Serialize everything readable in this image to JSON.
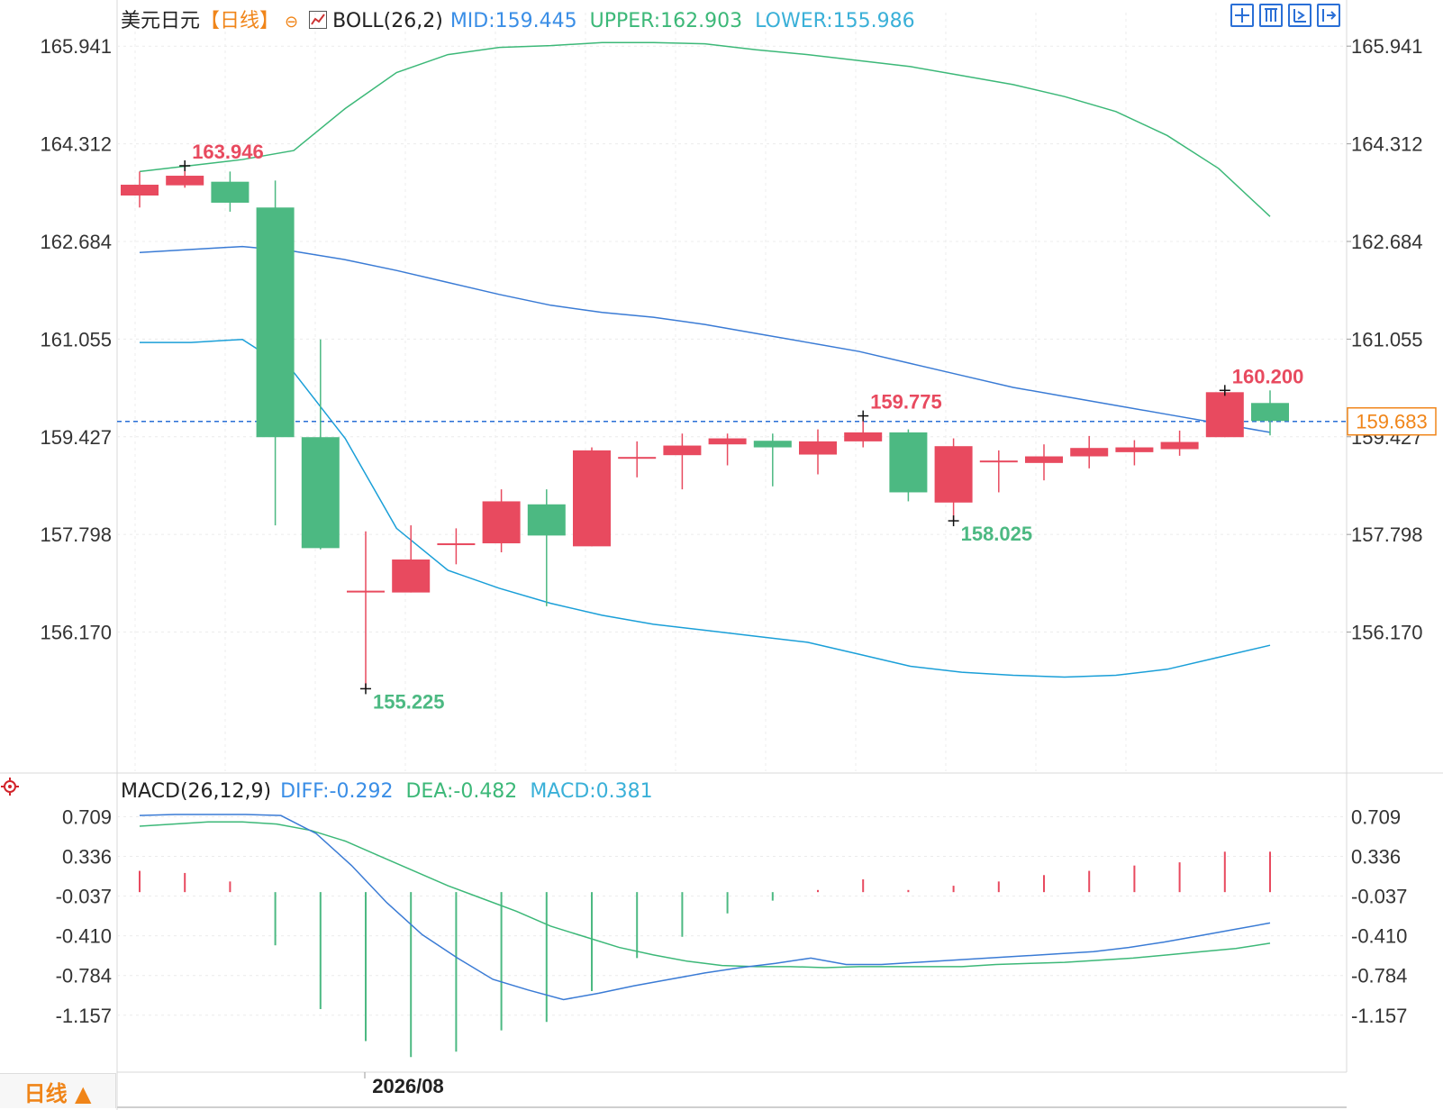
{
  "header": {
    "symbol": "美元日元",
    "period": "【日线】",
    "indicator": "BOLL(26,2)",
    "mid": "MID:159.445",
    "upper": "UPPER:162.903",
    "lower": "LOWER:155.986"
  },
  "macd_header": {
    "indicator": "MACD(26,12,9)",
    "diff": "DIFF:-0.292",
    "dea": "DEA:-0.482",
    "macd": "MACD:0.381"
  },
  "period_tab": "日线 ▲",
  "x_axis_label": "2026/08",
  "colors": {
    "up": "#e84a5f",
    "down": "#4cb982",
    "mid_line": "#3a7bd5",
    "bands": "#1a9fd8",
    "upper_band": "#3cb878",
    "diff_line": "#3a7bd5",
    "dea_line": "#3cb878",
    "current_price": "#f08519",
    "header_mid": "#3a8ee6",
    "header_upper": "#3cb878",
    "header_lower": "#3ab0d8"
  },
  "icons": [
    "crosshair-icon",
    "bar-icon",
    "zoom-icon",
    "expand-icon",
    "settings-icon"
  ],
  "chart_data": [
    {
      "type": "candlestick",
      "ylim": [
        154.3,
        166.5
      ],
      "y_ticks": [
        "165.941",
        "164.312",
        "162.684",
        "161.055",
        "159.427",
        "157.798",
        "156.170"
      ],
      "current_price": "159.683",
      "candles": [
        {
          "open": 163.45,
          "close": 163.63,
          "high": 163.85,
          "low": 163.25
        },
        {
          "open": 163.62,
          "close": 163.78,
          "high": 163.946,
          "low": 163.58
        },
        {
          "open": 163.68,
          "close": 163.33,
          "high": 163.85,
          "low": 163.18
        },
        {
          "open": 163.25,
          "close": 159.42,
          "high": 163.7,
          "low": 157.95
        },
        {
          "open": 159.42,
          "close": 157.57,
          "high": 161.05,
          "low": 157.55
        },
        {
          "open": 156.83,
          "close": 156.86,
          "high": 157.85,
          "low": 155.225
        },
        {
          "open": 156.83,
          "close": 157.38,
          "high": 157.95,
          "low": 156.83
        },
        {
          "open": 157.63,
          "close": 157.65,
          "high": 157.9,
          "low": 157.3
        },
        {
          "open": 157.65,
          "close": 158.35,
          "high": 158.55,
          "low": 157.5
        },
        {
          "open": 158.3,
          "close": 157.78,
          "high": 158.55,
          "low": 156.6
        },
        {
          "open": 157.6,
          "close": 159.2,
          "high": 159.25,
          "low": 157.6
        },
        {
          "open": 159.06,
          "close": 159.09,
          "high": 159.35,
          "low": 158.75
        },
        {
          "open": 159.12,
          "close": 159.28,
          "high": 159.48,
          "low": 158.55
        },
        {
          "open": 159.3,
          "close": 159.4,
          "high": 159.48,
          "low": 158.95
        },
        {
          "open": 159.36,
          "close": 159.25,
          "high": 159.48,
          "low": 158.6
        },
        {
          "open": 159.13,
          "close": 159.35,
          "high": 159.55,
          "low": 158.8
        },
        {
          "open": 159.35,
          "close": 159.5,
          "high": 159.775,
          "low": 159.25
        },
        {
          "open": 159.5,
          "close": 158.5,
          "high": 159.55,
          "low": 158.35
        },
        {
          "open": 158.33,
          "close": 159.27,
          "high": 159.4,
          "low": 158.025
        },
        {
          "open": 159.0,
          "close": 159.03,
          "high": 159.2,
          "low": 158.5
        },
        {
          "open": 158.99,
          "close": 159.1,
          "high": 159.3,
          "low": 158.7
        },
        {
          "open": 159.1,
          "close": 159.24,
          "high": 159.44,
          "low": 158.9
        },
        {
          "open": 159.17,
          "close": 159.25,
          "high": 159.37,
          "low": 158.95
        },
        {
          "open": 159.22,
          "close": 159.34,
          "high": 159.53,
          "low": 159.11
        },
        {
          "open": 159.42,
          "close": 160.17,
          "high": 160.2,
          "low": 159.42
        },
        {
          "open": 159.99,
          "close": 159.69,
          "high": 160.2,
          "low": 159.45
        }
      ],
      "mid": [
        162.5,
        162.55,
        162.6,
        162.52,
        162.38,
        162.2,
        162.0,
        161.8,
        161.62,
        161.5,
        161.42,
        161.3,
        161.15,
        161.0,
        160.85,
        160.65,
        160.45,
        160.25,
        160.1,
        159.95,
        159.8,
        159.65,
        159.5
      ],
      "upper": [
        163.85,
        163.95,
        164.05,
        164.2,
        164.9,
        165.5,
        165.8,
        165.92,
        165.95,
        166.0,
        166.0,
        165.98,
        165.88,
        165.8,
        165.7,
        165.6,
        165.45,
        165.3,
        165.1,
        164.85,
        164.45,
        163.9,
        163.1
      ],
      "lower": [
        161.0,
        161.0,
        161.05,
        160.5,
        159.4,
        157.9,
        157.2,
        156.9,
        156.65,
        156.45,
        156.3,
        156.2,
        156.1,
        156.0,
        155.8,
        155.6,
        155.5,
        155.45,
        155.42,
        155.45,
        155.55,
        155.75,
        155.95
      ],
      "labels": [
        {
          "candle": 1,
          "value": "163.946",
          "kind": "high"
        },
        {
          "candle": 5,
          "value": "155.225",
          "kind": "low"
        },
        {
          "candle": 16,
          "value": "159.775",
          "kind": "high"
        },
        {
          "candle": 18,
          "value": "158.025",
          "kind": "low"
        },
        {
          "candle": 24,
          "value": "160.200",
          "kind": "high"
        }
      ]
    },
    {
      "type": "macd",
      "ylim": [
        -1.65,
        0.95
      ],
      "y_ticks": [
        "0.709",
        "0.336",
        "-0.037",
        "-0.410",
        "-0.784",
        "-1.157"
      ],
      "hist": [
        0.2,
        0.18,
        0.1,
        -0.5,
        -1.1,
        -1.4,
        -1.55,
        -1.5,
        -1.3,
        -1.22,
        -0.93,
        -0.62,
        -0.42,
        -0.2,
        -0.08,
        0.02,
        0.12,
        0.02,
        0.06,
        0.1,
        0.16,
        0.2,
        0.25,
        0.28,
        0.38,
        0.38
      ],
      "diff": [
        0.72,
        0.73,
        0.73,
        0.73,
        0.72,
        0.55,
        0.25,
        -0.1,
        -0.4,
        -0.62,
        -0.82,
        -0.92,
        -1.01,
        -0.95,
        -0.88,
        -0.82,
        -0.76,
        -0.71,
        -0.67,
        -0.62,
        -0.68,
        -0.68,
        -0.66,
        -0.64,
        -0.62,
        -0.6,
        -0.58,
        -0.56,
        -0.52,
        -0.47,
        -0.41,
        -0.35,
        -0.29
      ],
      "dea": [
        0.62,
        0.64,
        0.66,
        0.66,
        0.64,
        0.58,
        0.48,
        0.34,
        0.2,
        0.06,
        -0.06,
        -0.18,
        -0.32,
        -0.42,
        -0.52,
        -0.59,
        -0.65,
        -0.69,
        -0.7,
        -0.7,
        -0.71,
        -0.7,
        -0.7,
        -0.7,
        -0.7,
        -0.68,
        -0.67,
        -0.66,
        -0.64,
        -0.62,
        -0.59,
        -0.56,
        -0.53,
        -0.48
      ]
    }
  ]
}
